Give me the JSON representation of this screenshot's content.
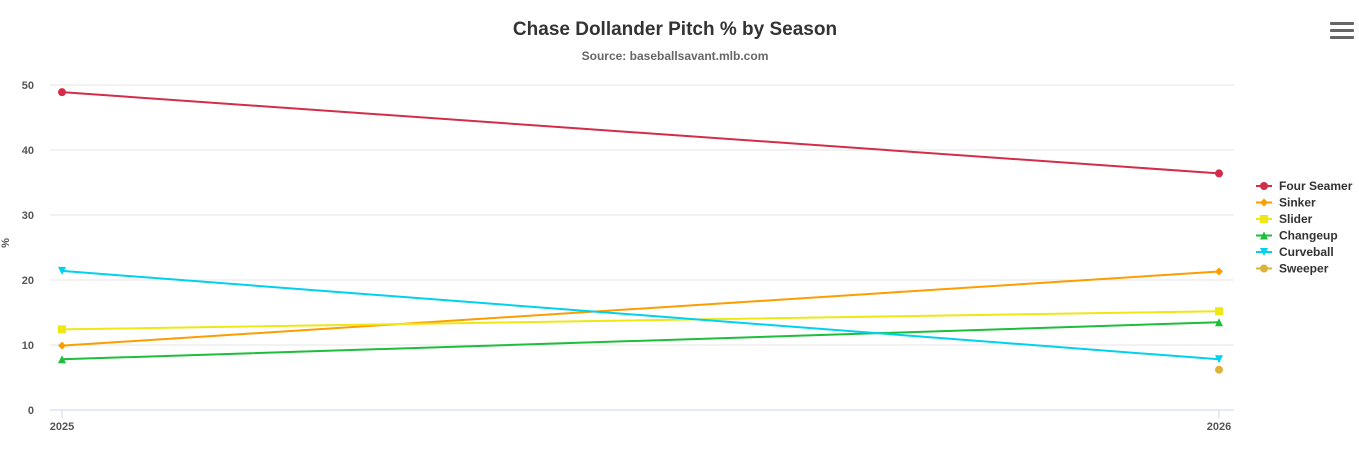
{
  "chart_data": {
    "type": "line",
    "title": "Chase Dollander Pitch % by Season",
    "subtitle": "Source: baseballsavant.mlb.com",
    "ylabel": "%",
    "xlabel": "",
    "categories": [
      "2025",
      "2026"
    ],
    "ylim": [
      0,
      50
    ],
    "yticks": [
      0,
      10,
      20,
      30,
      40,
      50
    ],
    "grid": true,
    "legend_position": "right",
    "series": [
      {
        "name": "Four Seamer",
        "color": "#d22d49",
        "marker": "circle",
        "values": [
          48.9,
          36.4
        ]
      },
      {
        "name": "Sinker",
        "color": "#fe9d00",
        "marker": "diamond",
        "values": [
          9.9,
          21.3
        ]
      },
      {
        "name": "Slider",
        "color": "#eee716",
        "marker": "square",
        "values": [
          12.4,
          15.2
        ]
      },
      {
        "name": "Changeup",
        "color": "#1dbe3a",
        "marker": "triangle-up",
        "values": [
          7.8,
          13.5
        ]
      },
      {
        "name": "Curveball",
        "color": "#00d1ed",
        "marker": "triangle-down",
        "values": [
          21.4,
          7.8
        ]
      },
      {
        "name": "Sweeper",
        "color": "#ddb33a",
        "marker": "circle",
        "values": [
          null,
          6.2
        ]
      }
    ]
  },
  "menu": {
    "icon": "hamburger-menu-icon"
  }
}
